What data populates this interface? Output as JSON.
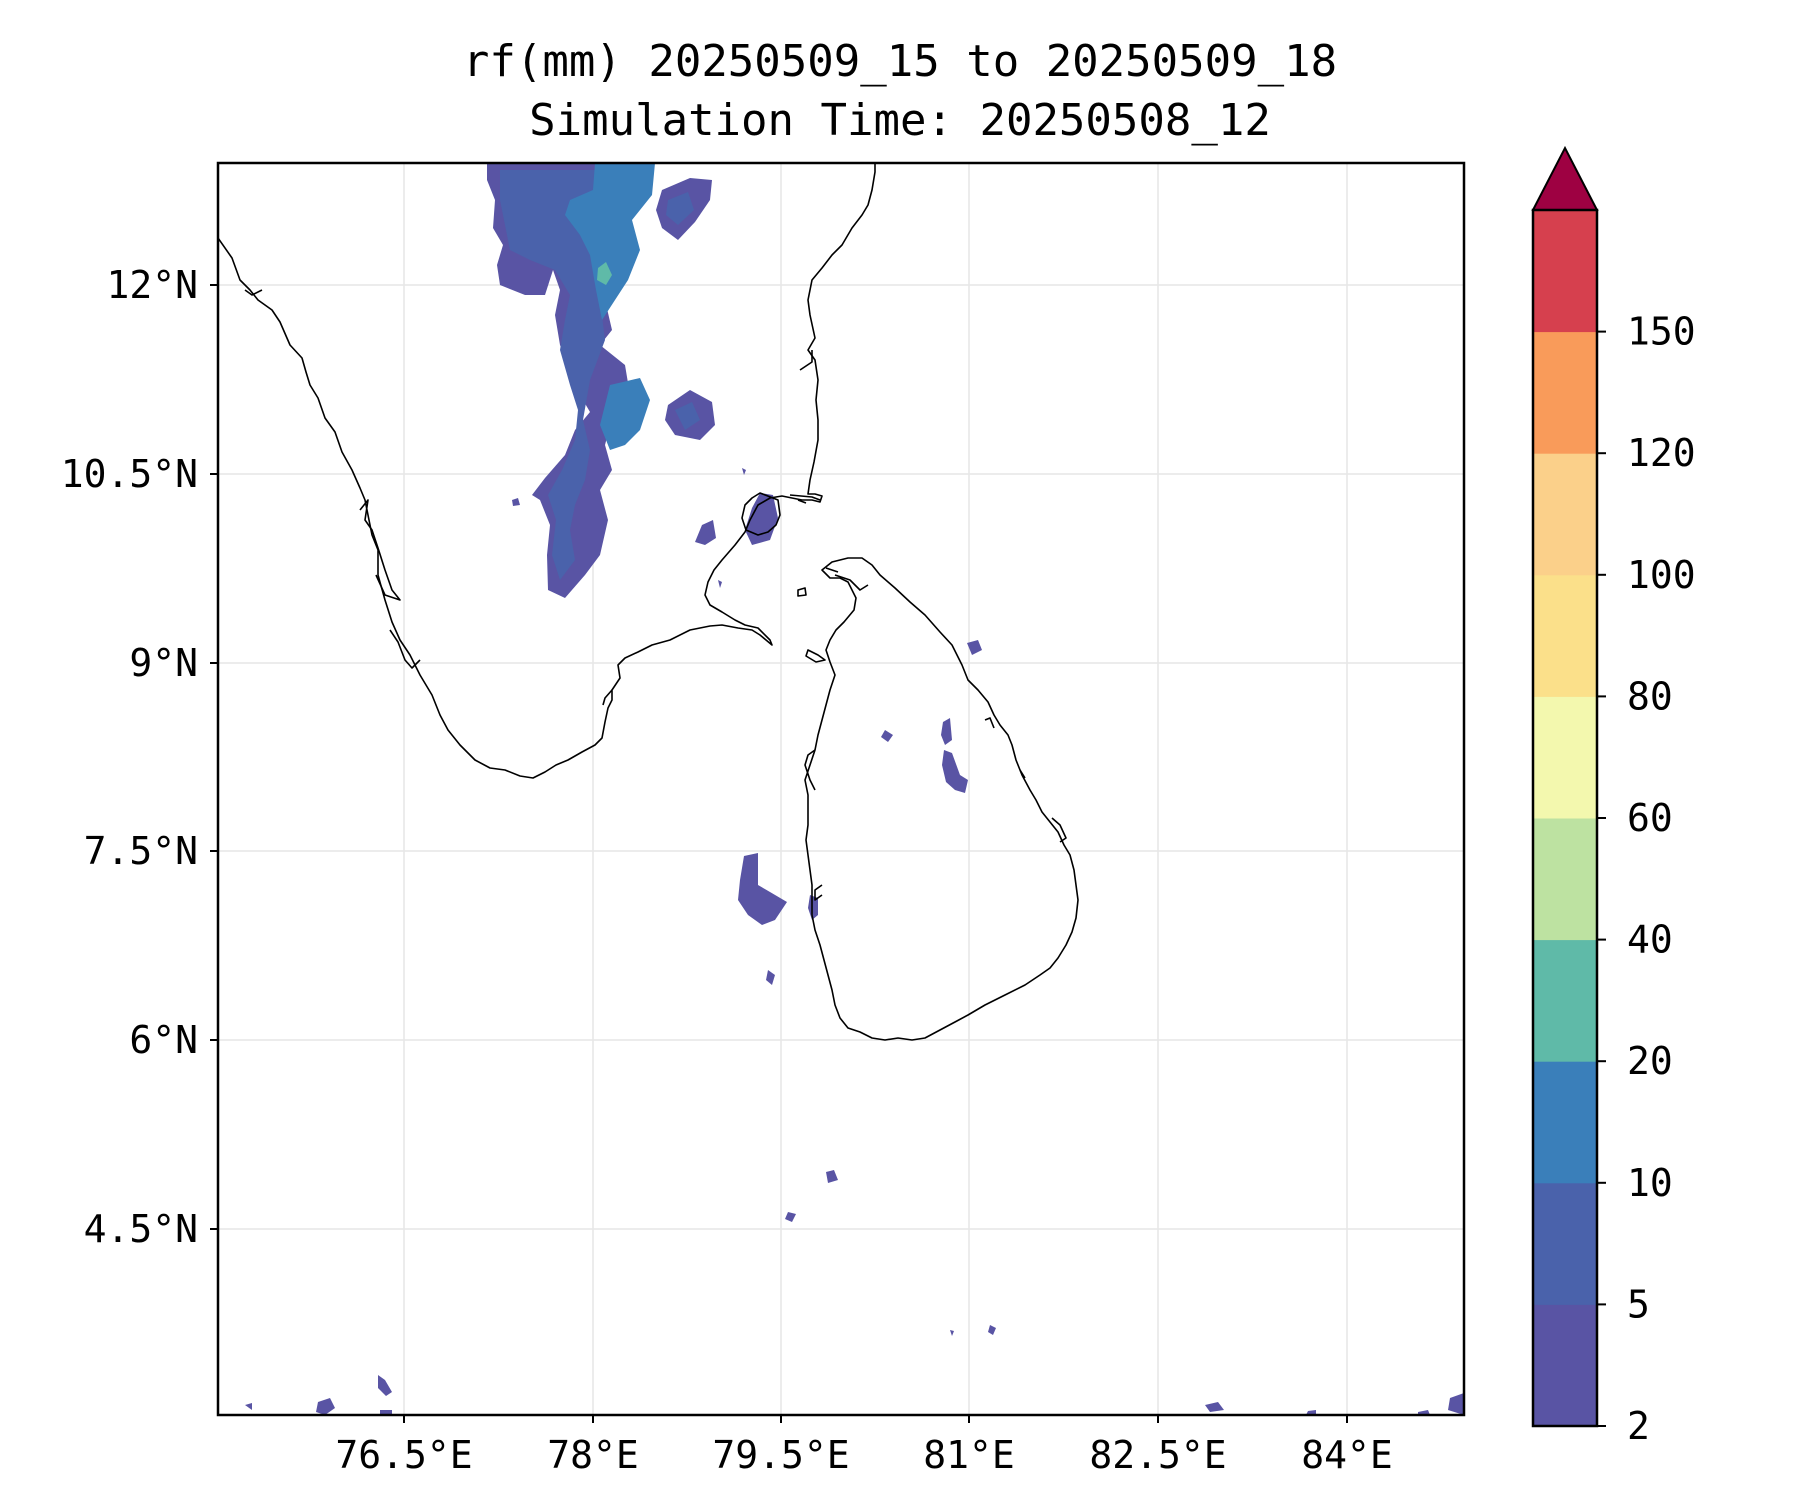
{
  "title": {
    "line1": "rf(mm) 20250509_15 to 20250509_18",
    "line2": "Simulation Time: 20250508_12"
  },
  "map": {
    "lon_labels": [
      "76.5°E",
      "78°E",
      "79.5°E",
      "81°E",
      "82.5°E",
      "84°E"
    ],
    "lat_labels": [
      "12°N",
      "10.5°N",
      "9°N",
      "7.5°N",
      "6°N",
      "4.5°N"
    ],
    "grid": true,
    "coastline": true
  },
  "colorbar": {
    "tick_labels": [
      "2",
      "5",
      "10",
      "20",
      "40",
      "60",
      "80",
      "100",
      "120",
      "150"
    ],
    "colors": [
      "#5954a4",
      "#4a62ab",
      "#3a7fba",
      "#5fbaa8",
      "#bde2a1",
      "#f3f8ae",
      "#fbe08a",
      "#fbd08a",
      "#f99b5a",
      "#d6404e"
    ],
    "extend_color": "#9e0142",
    "extend": "max",
    "placement": "right"
  },
  "colors": {
    "rain_low": "#5954a4",
    "rain_5_10": "#4a62ab",
    "rain_10_20": "#3a7fba",
    "rain_20_40": "#5fbaa8"
  }
}
